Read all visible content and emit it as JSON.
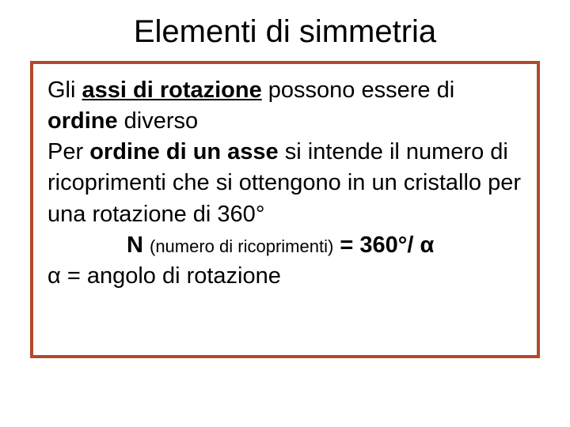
{
  "title": "Elementi di simmetria",
  "border_color": "#b14a2a",
  "text_color": "#000000",
  "background_color": "#ffffff",
  "title_fontsize": 40,
  "body_fontsize": 29,
  "small_fontsize": 22,
  "p1": {
    "t1": "Gli ",
    "t2": "assi di rotazione",
    "t3": " possono essere di ",
    "t4": "ordine",
    "t5": " diverso"
  },
  "p2": {
    "t1": "Per ",
    "t2": "ordine di un asse",
    "t3": " si intende il numero di ricoprimenti che si ottengono in un cristallo  per una rotazione di 360°"
  },
  "formula": {
    "t1": "N ",
    "t2": "(numero di ricoprimenti)",
    "t3": " = 360°/ α"
  },
  "p3": "α = angolo di rotazione"
}
